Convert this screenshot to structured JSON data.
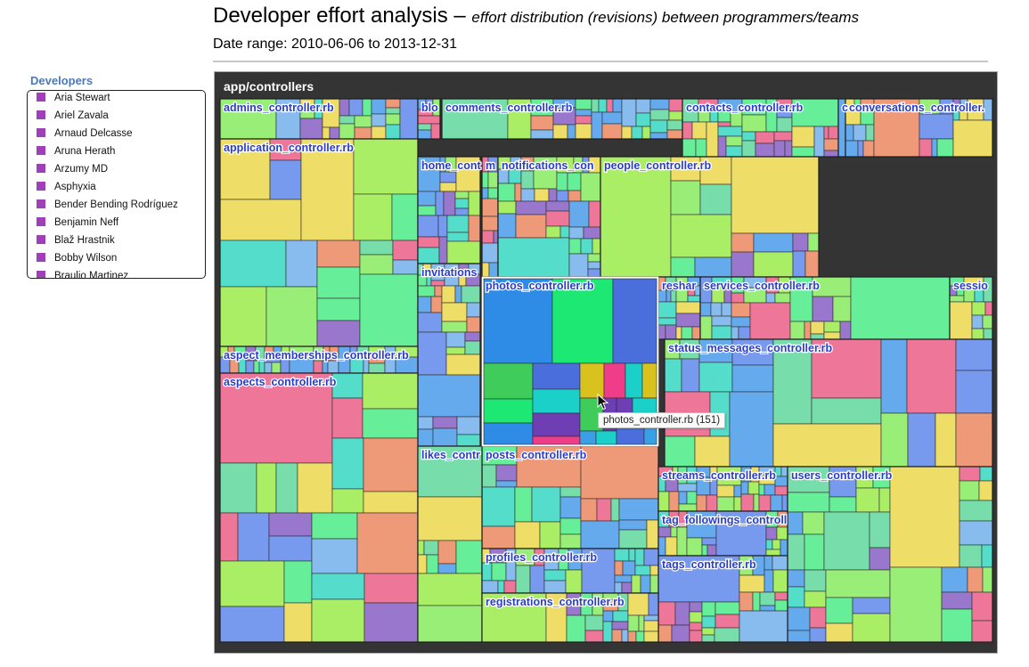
{
  "header": {
    "title_main": "Developer effort analysis – ",
    "title_sub": "effort distribution (revisions) between programmers/teams",
    "date_range": "Date range: 2010-06-06 to 2013-12-31"
  },
  "sidebar": {
    "heading": "Developers",
    "swatch_color": "#a040b8",
    "developers": [
      "Aria Stewart",
      "Ariel Zavala",
      "Arnaud Delcasse",
      "Aruna Herath",
      "Arzumy MD",
      "Asphyxia",
      "Bender Bending Rodríguez",
      "Benjamin Neff",
      "Blaž Hrastnik",
      "Bobby Wilson",
      "Braulio Martinez"
    ]
  },
  "tooltip": {
    "text": "photos_controller.rb (151)"
  },
  "chart_data": {
    "type": "treemap",
    "root": "app/controllers",
    "highlighted": "photos_controller.rb",
    "files": [
      {
        "name": "admins_controller.rb",
        "label": "admins_controller.rb"
      },
      {
        "name": "blocks_controller.rb",
        "label": "blo"
      },
      {
        "name": "comments_controller.rb",
        "label": "comments_controller.rb"
      },
      {
        "name": "contacts_controller.rb",
        "label": "contacts_controller.rb"
      },
      {
        "name": "c_controller.rb",
        "label": "c"
      },
      {
        "name": "conversations_controller.rb",
        "label": "conversations_controller."
      },
      {
        "name": "application_controller.rb",
        "label": "application_controller.rb"
      },
      {
        "name": "home_controller.rb",
        "label": "home_cont"
      },
      {
        "name": "m_controller.rb",
        "label": "m"
      },
      {
        "name": "notifications_controller.rb",
        "label": "notifications_con"
      },
      {
        "name": "people_controller.rb",
        "label": "people_controller.rb"
      },
      {
        "name": "invitations_controller.rb",
        "label": "invitations"
      },
      {
        "name": "photos_controller.rb",
        "label": "photos_controller.rb",
        "revisions": 151
      },
      {
        "name": "reshares_controller.rb",
        "label": "reshar"
      },
      {
        "name": "services_controller.rb",
        "label": "services_controller.rb"
      },
      {
        "name": "sessions_controller.rb",
        "label": "sessio"
      },
      {
        "name": "aspect_memberships_controller.rb",
        "label": "aspect_memberships_controller.rb"
      },
      {
        "name": "status_messages_controller.rb",
        "label": "status_messages_controller.rb"
      },
      {
        "name": "aspects_controller.rb",
        "label": "aspects_controller.rb"
      },
      {
        "name": "posts_controller.rb",
        "label": "posts_controller.rb"
      },
      {
        "name": "streams_controller.rb",
        "label": "streams_controller.rb"
      },
      {
        "name": "users_controller.rb",
        "label": "users_controller.rb"
      },
      {
        "name": "tag_followings_controller.rb",
        "label": "tag_followings_controll"
      },
      {
        "name": "likes_controller.rb",
        "label": "likes_contr"
      },
      {
        "name": "profiles_controller.rb",
        "label": "profiles_controller.rb"
      },
      {
        "name": "tags_controller.rb",
        "label": "tags_controller.rb"
      },
      {
        "name": "registrations_controller.rb",
        "label": "registrations_controller.rb"
      }
    ],
    "palette": [
      "#66aaee",
      "#66ee99",
      "#99ee77",
      "#7799ee",
      "#ee7799",
      "#eedd66",
      "#9977cc",
      "#ee9977",
      "#55ddcc",
      "#aaee66",
      "#88bbee",
      "#77ddaa"
    ],
    "highlight_palette": [
      "#2e8ce6",
      "#1ee874",
      "#4a6fdc",
      "#d9c21e",
      "#f03d8a",
      "#1ad0c8",
      "#6e3eb4",
      "#f08a2a",
      "#3fcc5a",
      "#3aa0e6"
    ]
  }
}
